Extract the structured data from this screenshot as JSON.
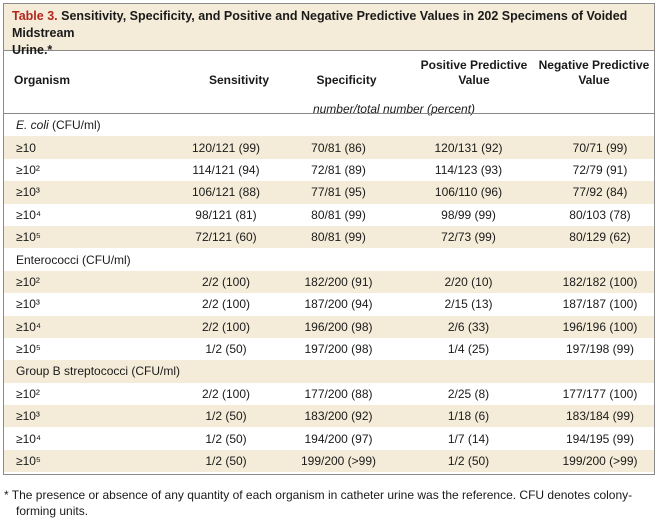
{
  "table": {
    "number_label": "Table 3.",
    "title": "Sensitivity, Specificity, and Positive and Negative Predictive Values in 202 Specimens of Voided Midstream",
    "title_line2": "Urine.*",
    "header": {
      "organism": "Organism",
      "sensitivity": "Sensitivity",
      "specificity": "Specificity",
      "ppv_line1": "Positive Predictive",
      "ppv_line2": "Value",
      "npv_line1": "Negative Predictive",
      "npv_line2": "Value",
      "units_note": "number/total number (percent)"
    },
    "rows": [
      {
        "type": "group",
        "label_italic": "E. coli",
        "label_rest": " (CFU/ml)"
      },
      {
        "type": "data",
        "label": "≥10",
        "sens": "120/121 (99)",
        "spec": "70/81 (86)",
        "ppv": "120/131 (92)",
        "npv": "70/71 (99)"
      },
      {
        "type": "data",
        "label": "≥10²",
        "sens": "114/121 (94)",
        "spec": "72/81 (89)",
        "ppv": "114/123 (93)",
        "npv": "72/79 (91)"
      },
      {
        "type": "data",
        "label": "≥10³",
        "sens": "106/121 (88)",
        "spec": "77/81 (95)",
        "ppv": "106/110 (96)",
        "npv": "77/92 (84)"
      },
      {
        "type": "data",
        "label": "≥10⁴",
        "sens": "98/121 (81)",
        "spec": "80/81 (99)",
        "ppv": "98/99 (99)",
        "npv": "80/103 (78)"
      },
      {
        "type": "data",
        "label": "≥10⁵",
        "sens": "72/121 (60)",
        "spec": "80/81 (99)",
        "ppv": "72/73 (99)",
        "npv": "80/129 (62)"
      },
      {
        "type": "group",
        "label_italic": "",
        "label_rest": "Enterococci (CFU/ml)"
      },
      {
        "type": "data",
        "label": "≥10²",
        "sens": "2/2 (100)",
        "spec": "182/200 (91)",
        "ppv": "2/20 (10)",
        "npv": "182/182 (100)"
      },
      {
        "type": "data",
        "label": "≥10³",
        "sens": "2/2 (100)",
        "spec": "187/200 (94)",
        "ppv": "2/15 (13)",
        "npv": "187/187 (100)"
      },
      {
        "type": "data",
        "label": "≥10⁴",
        "sens": "2/2 (100)",
        "spec": "196/200 (98)",
        "ppv": "2/6 (33)",
        "npv": "196/196 (100)"
      },
      {
        "type": "data",
        "label": "≥10⁵",
        "sens": "1/2 (50)",
        "spec": "197/200 (98)",
        "ppv": "1/4 (25)",
        "npv": "197/198 (99)"
      },
      {
        "type": "group",
        "label_italic": "",
        "label_rest": "Group B streptococci (CFU/ml)"
      },
      {
        "type": "data",
        "label": "≥10²",
        "sens": "2/2 (100)",
        "spec": "177/200 (88)",
        "ppv": "2/25 (8)",
        "npv": "177/177 (100)"
      },
      {
        "type": "data",
        "label": "≥10³",
        "sens": "1/2 (50)",
        "spec": "183/200 (92)",
        "ppv": "1/18 (6)",
        "npv": "183/184 (99)"
      },
      {
        "type": "data",
        "label": "≥10⁴",
        "sens": "1/2 (50)",
        "spec": "194/200 (97)",
        "ppv": "1/7 (14)",
        "npv": "194/195 (99)"
      },
      {
        "type": "data",
        "label": "≥10⁵",
        "sens": "1/2 (50)",
        "spec": "199/200 (>99)",
        "ppv": "1/2 (50)",
        "npv": "199/200 (>99)"
      }
    ],
    "footnote_line1": "* The presence or absence of any quantity of each organism in catheter urine was the reference. CFU denotes colony-",
    "footnote_line2": "forming units."
  }
}
